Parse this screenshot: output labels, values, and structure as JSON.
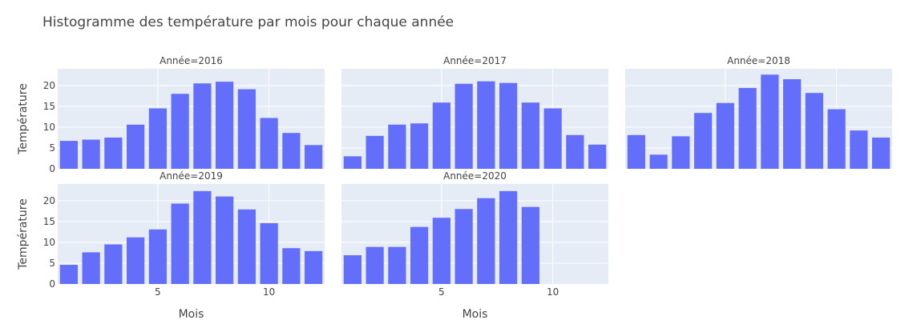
{
  "chart_data": {
    "type": "bar",
    "title": "Histogramme des température par mois pour chaque année",
    "xlabel": "Mois",
    "ylabel": "Température",
    "xlim": [
      0.5,
      12.5
    ],
    "ylim": [
      0,
      24
    ],
    "xticks": [
      5,
      10
    ],
    "yticks": [
      0,
      5,
      10,
      15,
      20
    ],
    "grid": true,
    "bar_color": "#636efa",
    "plot_background": "#e5ecf6",
    "x": [
      1,
      2,
      3,
      4,
      5,
      6,
      7,
      8,
      9,
      10,
      11,
      12
    ],
    "facets": [
      {
        "title": "Année=2016",
        "values": [
          6.7,
          7.0,
          7.5,
          10.6,
          14.5,
          18.0,
          20.5,
          20.9,
          19.1,
          12.2,
          8.6,
          5.7
        ]
      },
      {
        "title": "Année=2017",
        "values": [
          3.0,
          7.9,
          10.6,
          10.9,
          15.9,
          20.4,
          21.0,
          20.6,
          15.9,
          14.5,
          8.1,
          5.8
        ]
      },
      {
        "title": "Année=2018",
        "values": [
          8.1,
          3.4,
          7.8,
          13.4,
          15.8,
          19.4,
          22.6,
          21.5,
          18.2,
          14.3,
          9.2,
          7.5
        ]
      },
      {
        "title": "Année=2019",
        "values": [
          4.6,
          7.6,
          9.5,
          11.2,
          13.1,
          19.3,
          22.3,
          21.0,
          17.9,
          14.6,
          8.6,
          7.9
        ]
      },
      {
        "title": "Année=2020",
        "values": [
          6.9,
          8.9,
          8.9,
          13.7,
          15.9,
          18.0,
          20.6,
          22.3,
          18.5
        ]
      }
    ]
  }
}
